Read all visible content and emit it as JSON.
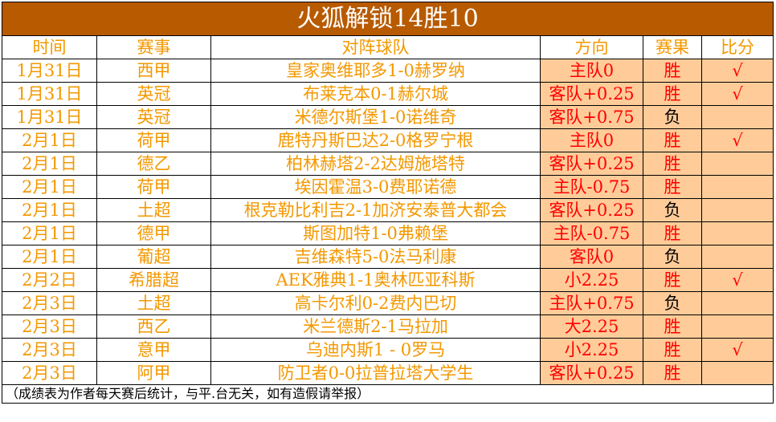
{
  "title": "火狐解锁14胜10",
  "headers": [
    "时间",
    "赛事",
    "对阵球队",
    "方向",
    "赛果",
    "比分"
  ],
  "rows": [
    {
      "date": "1月31日",
      "league": "西甲",
      "match": "皇家奥维耶多1-0赫罗纳",
      "direction": "主队0",
      "result": "胜",
      "mark": "√"
    },
    {
      "date": "1月31日",
      "league": "英冠",
      "match": "布莱克本0-1赫尔城",
      "direction": "客队+0.25",
      "result": "胜",
      "mark": "√"
    },
    {
      "date": "1月31日",
      "league": "英冠",
      "match": "米德尔斯堡1-0诺维奇",
      "direction": "客队+0.75",
      "result": "负",
      "mark": ""
    },
    {
      "date": "2月1日",
      "league": "荷甲",
      "match": "鹿特丹斯巴达2-0格罗宁根",
      "direction": "主队0",
      "result": "胜",
      "mark": "√"
    },
    {
      "date": "2月1日",
      "league": "德乙",
      "match": "柏林赫塔2-2达姆施塔特",
      "direction": "客队+0.25",
      "result": "胜",
      "mark": ""
    },
    {
      "date": "2月1日",
      "league": "荷甲",
      "match": "埃因霍温3-0费耶诺德",
      "direction": "主队-0.75",
      "result": "胜",
      "mark": ""
    },
    {
      "date": "2月1日",
      "league": "土超",
      "match": "根克勒比利吉2-1加济安泰普大都会",
      "direction": "客队+0.25",
      "result": "负",
      "mark": ""
    },
    {
      "date": "2月1日",
      "league": "德甲",
      "match": "斯图加特1-0弗赖堡",
      "direction": "主队-0.75",
      "result": "胜",
      "mark": ""
    },
    {
      "date": "2月1日",
      "league": "葡超",
      "match": "吉维森特5-0法马利康",
      "direction": "客队0",
      "result": "负",
      "mark": ""
    },
    {
      "date": "2月2日",
      "league": "希腊超",
      "match": "AEK雅典1-1奥林匹亚科斯",
      "direction": "小2.25",
      "result": "胜",
      "mark": "√"
    },
    {
      "date": "2月3日",
      "league": "土超",
      "match": "高卡尔利0-2费内巴切",
      "direction": "主队+0.75",
      "result": "负",
      "mark": ""
    },
    {
      "date": "2月3日",
      "league": "西乙",
      "match": "米兰德斯2-1马拉加",
      "direction": "大2.25",
      "result": "胜",
      "mark": ""
    },
    {
      "date": "2月3日",
      "league": "意甲",
      "match": "乌迪内斯1 - 0罗马",
      "direction": "小2.25",
      "result": "胜",
      "mark": "√"
    },
    {
      "date": "2月3日",
      "league": "阿甲",
      "match": "防卫者0-0拉普拉塔大学生",
      "direction": "客队+0.25",
      "result": "胜",
      "mark": ""
    }
  ],
  "footer": "（成绩表为作者每天赛后统计，与平.台无关，如有造假请举报）",
  "colors": {
    "title_bg": "#B85A00",
    "text": "#F39800",
    "highlight": "#FFCC99",
    "red": "#FF0000"
  }
}
